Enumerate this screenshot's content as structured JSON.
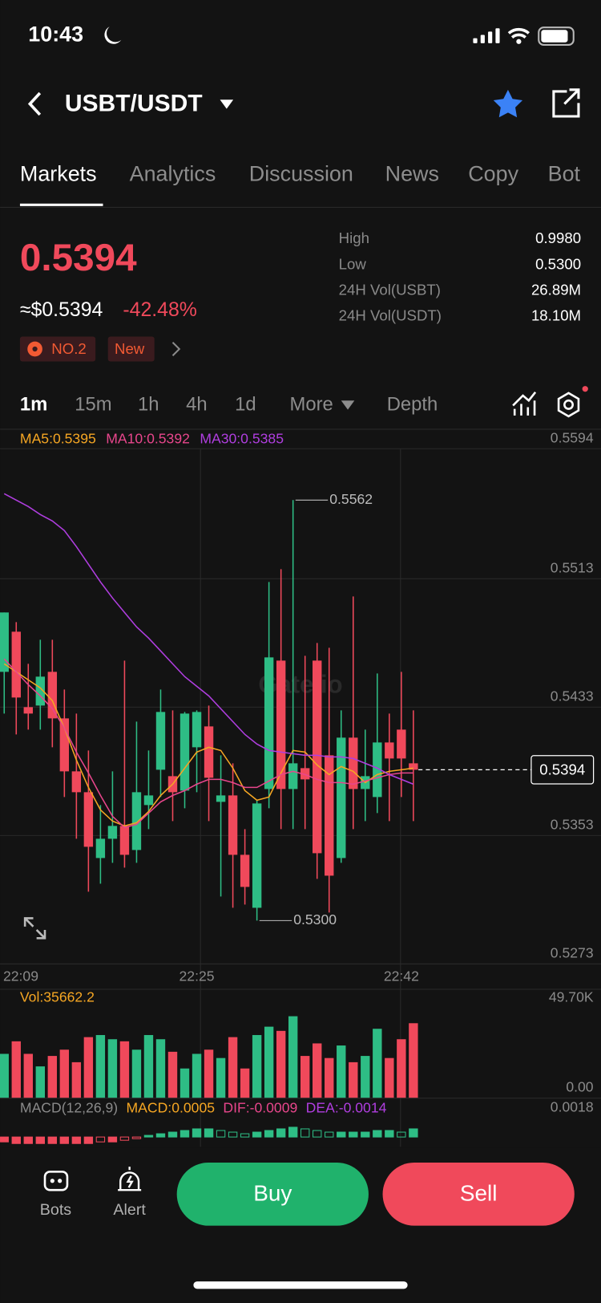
{
  "status_bar": {
    "time": "10:43"
  },
  "header": {
    "pair": "USBT/USDT"
  },
  "tabs": [
    "Markets",
    "Analytics",
    "Discussion",
    "News",
    "Copy",
    "Bot"
  ],
  "ticker": {
    "price": "0.5394",
    "usd_price": "≈$0.5394",
    "change": "-42.48%",
    "badges": [
      "NO.2",
      "New"
    ],
    "stats": [
      {
        "label": "High",
        "value": "0.9980"
      },
      {
        "label": "Low",
        "value": "0.5300"
      },
      {
        "label": "24H Vol(USBT)",
        "value": "26.89M"
      },
      {
        "label": "24H Vol(USDT)",
        "value": "18.10M"
      }
    ]
  },
  "intervals": [
    "1m",
    "15m",
    "1h",
    "4h",
    "1d",
    "More",
    "Depth"
  ],
  "chart_data": {
    "type": "candlestick",
    "watermark": "Gate.io",
    "categories": [
      "22:09",
      null,
      null,
      null,
      null,
      null,
      null,
      null,
      null,
      null,
      null,
      null,
      null,
      null,
      null,
      null,
      "22:25",
      null,
      null,
      null,
      null,
      null,
      null,
      null,
      null,
      null,
      null,
      null,
      null,
      null,
      null,
      null,
      null,
      "22:42",
      null
    ],
    "open": [
      0.5455,
      0.548,
      0.5433,
      0.5434,
      0.5455,
      0.5426,
      0.5393,
      0.538,
      0.5339,
      0.5351,
      0.5359,
      0.5344,
      0.5372,
      0.5394,
      0.539,
      0.5381,
      0.5408,
      0.5421,
      0.5374,
      0.5378,
      0.5341,
      0.5308,
      0.5382,
      0.5462,
      0.5382,
      0.5395,
      0.5462,
      0.5403,
      0.5339,
      0.5414,
      0.5382,
      0.5377,
      0.5411,
      0.5419,
      0.5398
    ],
    "high": [
      0.5492,
      0.5486,
      0.546,
      0.5475,
      0.5475,
      0.5444,
      0.5429,
      0.5406,
      0.5372,
      0.5393,
      0.5462,
      0.5424,
      0.5406,
      0.5444,
      0.5431,
      0.543,
      0.5431,
      0.5434,
      0.5403,
      0.5398,
      0.5357,
      0.5375,
      0.5511,
      0.5519,
      0.5562,
      0.5465,
      0.5473,
      0.547,
      0.5431,
      0.5502,
      0.5419,
      0.5454,
      0.5429,
      0.5455,
      0.5431
    ],
    "low": [
      0.5429,
      0.5416,
      0.5419,
      0.5419,
      0.5408,
      0.5377,
      0.5351,
      0.5318,
      0.5323,
      0.5336,
      0.5333,
      0.5336,
      0.5357,
      0.5377,
      0.5362,
      0.537,
      0.538,
      0.5362,
      0.5315,
      0.5308,
      0.531,
      0.53,
      0.537,
      0.5357,
      0.5357,
      0.5357,
      0.5326,
      0.5305,
      0.5336,
      0.5357,
      0.5362,
      0.5367,
      0.5362,
      0.5377,
      0.5362
    ],
    "close": [
      0.5492,
      0.5439,
      0.5429,
      0.5452,
      0.5426,
      0.5393,
      0.538,
      0.5346,
      0.5351,
      0.5359,
      0.5341,
      0.538,
      0.5378,
      0.543,
      0.538,
      0.5429,
      0.543,
      0.5389,
      0.5378,
      0.5341,
      0.5321,
      0.5373,
      0.5464,
      0.5382,
      0.5398,
      0.5388,
      0.5342,
      0.5328,
      0.5414,
      0.5382,
      0.539,
      0.5411,
      0.5401,
      0.5401,
      0.5394
    ],
    "up_color": "#2ebd85",
    "down_color": "#f0495b",
    "ylim": [
      0.5273,
      0.5594
    ],
    "yticks": [
      0.5594,
      0.5513,
      0.5433,
      0.5353,
      0.5273
    ],
    "annotations": [
      "0.5562",
      "0.5300"
    ],
    "series": [
      {
        "name": "MA5:0.5395",
        "color": "#f5a623",
        "values": [
          0.546,
          0.5455,
          0.545,
          0.5445,
          0.5437,
          0.542,
          0.54,
          0.5383,
          0.5369,
          0.5362,
          0.5359,
          0.5361,
          0.5368,
          0.5378,
          0.5385,
          0.5395,
          0.5405,
          0.5408,
          0.5406,
          0.5395,
          0.5381,
          0.5375,
          0.5377,
          0.5392,
          0.5406,
          0.5405,
          0.5397,
          0.5391,
          0.5396,
          0.5393,
          0.5386,
          0.5391,
          0.5393,
          0.5394,
          0.5395
        ]
      },
      {
        "name": "MA10:0.5392",
        "color": "#e8468c",
        "values": [
          0.5463,
          0.5455,
          0.5447,
          0.544,
          0.5432,
          0.542,
          0.5405,
          0.5392,
          0.5378,
          0.5365,
          0.5358,
          0.536,
          0.5367,
          0.5374,
          0.5378,
          0.5381,
          0.5385,
          0.5388,
          0.5388,
          0.5386,
          0.5383,
          0.5383,
          0.5387,
          0.5391,
          0.5393,
          0.5391,
          0.5388,
          0.5386,
          0.5386,
          0.5385,
          0.5387,
          0.5389,
          0.5391,
          0.5392,
          0.5392
        ]
      },
      {
        "name": "MA30:0.5385",
        "color": "#b03ee0",
        "values": [
          0.5566,
          0.5562,
          0.5558,
          0.5553,
          0.5549,
          0.5543,
          0.5533,
          0.5522,
          0.5511,
          0.5501,
          0.5492,
          0.5483,
          0.5476,
          0.5468,
          0.546,
          0.5452,
          0.5446,
          0.544,
          0.5432,
          0.5424,
          0.5416,
          0.541,
          0.5406,
          0.5405,
          0.5404,
          0.5403,
          0.5403,
          0.5402,
          0.5402,
          0.5401,
          0.5398,
          0.5395,
          0.5391,
          0.5388,
          0.5385
        ]
      }
    ],
    "volume_label": "Vol:35662.2",
    "volume": [
      21000,
      27000,
      21000,
      15000,
      20000,
      23000,
      17000,
      29000,
      30000,
      28000,
      27000,
      23000,
      30000,
      28000,
      22000,
      14000,
      21000,
      23000,
      19000,
      29000,
      14000,
      30000,
      34000,
      32000,
      39000,
      20000,
      26000,
      19000,
      25000,
      17000,
      20000,
      33000,
      19000,
      28000,
      35662.2
    ],
    "vlim": [
      0,
      49700
    ],
    "vticks": [
      {
        "value": 49700,
        "label": "49.70K"
      },
      {
        "value": 0,
        "label": "0.00"
      }
    ],
    "macd_labels": [
      {
        "text": "MACD(12,26,9)",
        "color": "#8a8a8a"
      },
      {
        "text": "MACD:0.0005",
        "color": "#f5a623"
      },
      {
        "text": "DIF:-0.0009",
        "color": "#e8468c"
      },
      {
        "text": "DEA:-0.0014",
        "color": "#b03ee0"
      }
    ],
    "macd": [
      -0.0003,
      -0.0004,
      -0.0004,
      -0.0004,
      -0.0004,
      -0.0004,
      -0.0004,
      -0.0004,
      -0.0003,
      -0.0003,
      -0.0002,
      -0.0001,
      0.0001,
      0.0002,
      0.0003,
      0.0004,
      0.0005,
      0.0005,
      0.0004,
      0.0003,
      0.0002,
      0.0003,
      0.0004,
      0.0005,
      0.0006,
      0.0005,
      0.0004,
      0.0003,
      0.0003,
      0.0003,
      0.0003,
      0.0004,
      0.0004,
      0.0003,
      0.0005
    ],
    "macd_ylim": [
      -0.0006,
      0.0018
    ],
    "macd_yticks": [
      0.0018
    ]
  },
  "bottom_bar": {
    "bots": "Bots",
    "alert": "Alert",
    "buy": "Buy",
    "sell": "Sell"
  }
}
